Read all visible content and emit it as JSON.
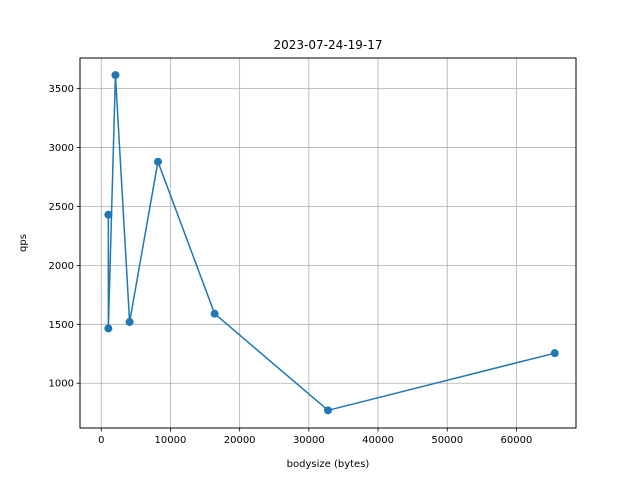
{
  "chart_data": {
    "type": "line",
    "title": "2023-07-24-19-17",
    "xlabel": "bodysize (bytes)",
    "ylabel": "qps",
    "xlim": [
      -3072,
      68608
    ],
    "ylim": [
      620,
      3760
    ],
    "grid": true,
    "series_color": "#1f77b4",
    "xticks": [
      0,
      10000,
      20000,
      30000,
      40000,
      50000,
      60000
    ],
    "yticks": [
      1000,
      1500,
      2000,
      2500,
      3000,
      3500
    ],
    "series": [
      {
        "x": [
          1024,
          1024,
          2048,
          4096,
          8192,
          16384,
          32768,
          65536
        ],
        "y": [
          2430,
          1465,
          3615,
          1520,
          2880,
          1590,
          770,
          1255
        ]
      }
    ]
  }
}
